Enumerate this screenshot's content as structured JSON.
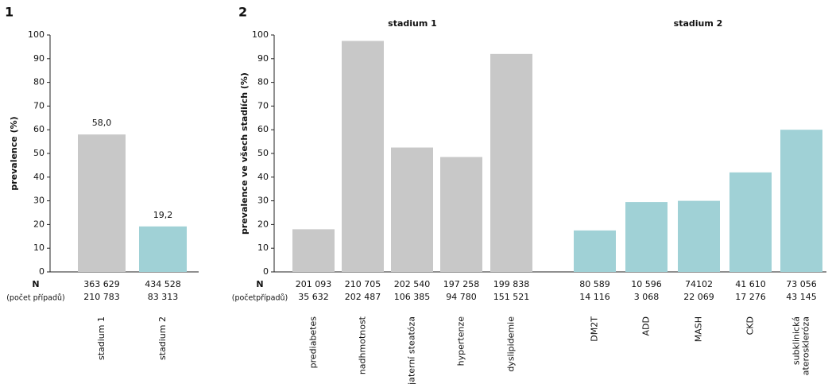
{
  "chart_data": [
    {
      "type": "bar",
      "title": "1",
      "ylabel": "prevalence (%)",
      "ylim": [
        0,
        100
      ],
      "yticks": [
        0,
        10,
        20,
        30,
        40,
        50,
        60,
        70,
        80,
        90,
        100
      ],
      "categories": [
        "stadium 1",
        "stadium 2"
      ],
      "values": [
        58.0,
        19.2
      ],
      "value_labels": [
        "58,0",
        "19,2"
      ],
      "colors": [
        "#c8c8c8",
        "#a0d1d6"
      ],
      "n_label": "N",
      "n_sublabel": "(počet případů)",
      "n": [
        [
          "363 629",
          "210 783"
        ],
        [
          "434 528",
          "83 313"
        ]
      ]
    },
    {
      "type": "bar",
      "title": "2",
      "ylabel": "prevalence ve všech stadiích (%)",
      "ylim": [
        0,
        100
      ],
      "yticks": [
        0,
        10,
        20,
        30,
        40,
        50,
        60,
        70,
        80,
        90,
        100
      ],
      "n_label": "N",
      "n_sublabel": "(početpřípadů)",
      "groups": [
        {
          "label": "stadium 1",
          "color": "#c8c8c8",
          "categories": [
            "prediabetes",
            "nadhmotnost",
            "jaterní steatóza",
            "hypertenze",
            "dyslipidemie"
          ],
          "values": [
            18,
            97.5,
            52.5,
            48.5,
            92
          ],
          "n": [
            [
              "201 093",
              "35 632"
            ],
            [
              "210 705",
              "202 487"
            ],
            [
              "202 540",
              "106 385"
            ],
            [
              "197 258",
              "94 780"
            ],
            [
              "199 838",
              "151 521"
            ]
          ]
        },
        {
          "label": "stadium 2",
          "color": "#a0d1d6",
          "categories": [
            "DM2T",
            "ADD",
            "MASH",
            "CKD",
            "subklinická ateroskleróza"
          ],
          "values": [
            17.5,
            29.5,
            30,
            42,
            60
          ],
          "n": [
            [
              "80 589",
              "14 116"
            ],
            [
              "10 596",
              "3 068"
            ],
            [
              "74102",
              "22 069"
            ],
            [
              "41 610",
              "17 276"
            ],
            [
              "73 056",
              "43 145"
            ]
          ]
        }
      ]
    }
  ]
}
